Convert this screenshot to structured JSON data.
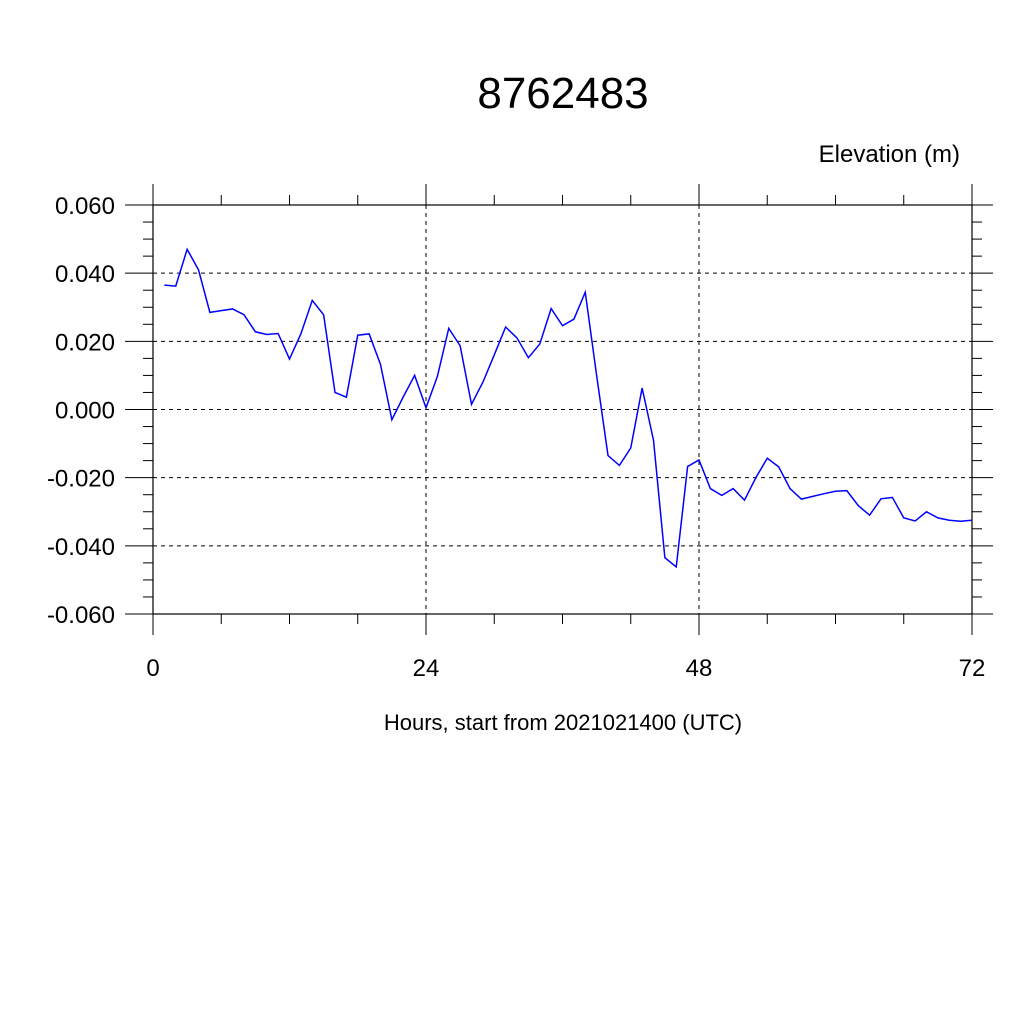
{
  "chart_data": {
    "type": "line",
    "title": "8762483",
    "unit_label": "Elevation (m)",
    "xlabel": "Hours, start from 2021021400 (UTC)",
    "xlim": [
      0,
      72
    ],
    "ylim": [
      -0.06,
      0.06
    ],
    "x_ticks": [
      0,
      24,
      48,
      72
    ],
    "x_tick_labels": [
      "0",
      "24",
      "48",
      "72"
    ],
    "y_ticks": [
      -0.06,
      -0.04,
      -0.02,
      0.0,
      0.02,
      0.04,
      0.06
    ],
    "y_tick_labels": [
      "-0.060",
      "-0.040",
      "-0.020",
      "0.000",
      "0.020",
      "0.040",
      "0.060"
    ],
    "grid": true,
    "series": [
      {
        "color": "#0000ff",
        "x": [
          1,
          2,
          3,
          4,
          5,
          6,
          7,
          8,
          9,
          10,
          11,
          12,
          13,
          14,
          15,
          16,
          17,
          18,
          19,
          20,
          21,
          22,
          23,
          24,
          25,
          26,
          27,
          28,
          29,
          30,
          31,
          32,
          33,
          34,
          35,
          36,
          37,
          38,
          39,
          40,
          41,
          42,
          43,
          44,
          45,
          46,
          47,
          48,
          49,
          50,
          51,
          52,
          53,
          54,
          55,
          56,
          57,
          58,
          59,
          60,
          61,
          62,
          63,
          64,
          65,
          66,
          67,
          68,
          69,
          70,
          71,
          72
        ],
        "y": [
          0.0365,
          0.0362,
          0.047,
          0.041,
          0.0285,
          0.029,
          0.0295,
          0.0278,
          0.0228,
          0.022,
          0.0223,
          0.0148,
          0.0222,
          0.032,
          0.0278,
          0.005,
          0.0036,
          0.0218,
          0.0222,
          0.0132,
          -0.003,
          0.0037,
          0.01,
          0.0005,
          0.0097,
          0.0238,
          0.0187,
          0.0015,
          0.008,
          0.016,
          0.0242,
          0.021,
          0.0152,
          0.0192,
          0.0296,
          0.0246,
          0.0265,
          0.0344,
          0.01,
          -0.0135,
          -0.0164,
          -0.0113,
          0.0063,
          -0.009,
          -0.0435,
          -0.0462,
          -0.0167,
          -0.0148,
          -0.0232,
          -0.0252,
          -0.0232,
          -0.0266,
          -0.02,
          -0.0143,
          -0.0168,
          -0.0232,
          -0.0263,
          -0.0255,
          -0.0247,
          -0.024,
          -0.0238,
          -0.0282,
          -0.031,
          -0.0262,
          -0.0258,
          -0.0318,
          -0.0327,
          -0.03,
          -0.0318,
          -0.0325,
          -0.0328,
          -0.0325
        ]
      }
    ]
  }
}
